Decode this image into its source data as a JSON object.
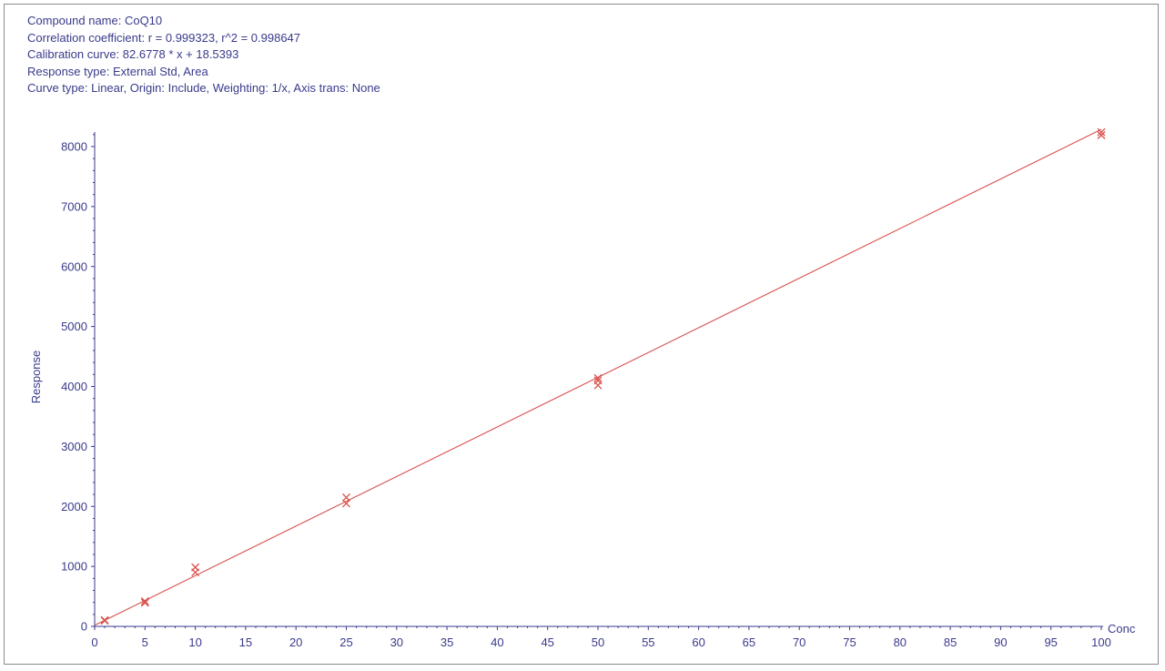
{
  "header": {
    "compound_name": "Compound name: CoQ10",
    "correlation": "Correlation coefficient: r = 0.999323, r^2 = 0.998647",
    "calibration_curve": "Calibration curve: 82.6778 * x + 18.5393",
    "response_type": "Response type: External Std, Area",
    "curve_type": "Curve type: Linear, Origin: Include, Weighting: 1/x, Axis trans: None"
  },
  "chart_data": {
    "type": "scatter",
    "xlabel": "Conc",
    "ylabel": "Response",
    "xlim": [
      0,
      100
    ],
    "ylim": [
      0,
      8000
    ],
    "x_ticks": [
      0,
      5,
      10,
      15,
      20,
      25,
      30,
      35,
      40,
      45,
      50,
      55,
      60,
      65,
      70,
      75,
      80,
      85,
      90,
      95,
      100
    ],
    "y_ticks": [
      0,
      1000,
      2000,
      3000,
      4000,
      5000,
      6000,
      7000,
      8000
    ],
    "grid": false,
    "colors": {
      "points": "#d9534f",
      "line": "#d9534f",
      "axis": "#3a3a8c"
    },
    "series": [
      {
        "marker": "x",
        "points": [
          {
            "x": 1,
            "y": 105
          },
          {
            "x": 1,
            "y": 95
          },
          {
            "x": 5,
            "y": 420
          },
          {
            "x": 5,
            "y": 395
          },
          {
            "x": 10,
            "y": 985
          },
          {
            "x": 10,
            "y": 900
          },
          {
            "x": 25,
            "y": 2150
          },
          {
            "x": 25,
            "y": 2050
          },
          {
            "x": 50,
            "y": 4140
          },
          {
            "x": 50,
            "y": 4100
          },
          {
            "x": 50,
            "y": 4020
          },
          {
            "x": 100,
            "y": 8240
          },
          {
            "x": 100,
            "y": 8190
          }
        ]
      }
    ],
    "fit_line": {
      "slope": 82.6778,
      "intercept": 18.5393
    }
  }
}
